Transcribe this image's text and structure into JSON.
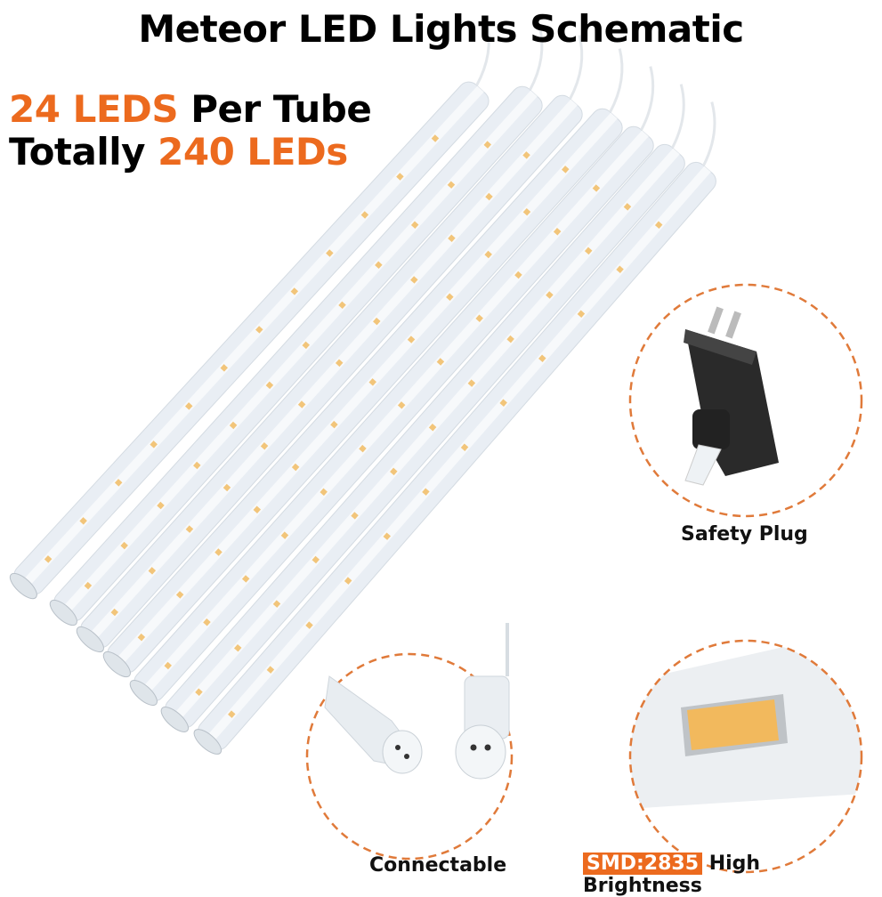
{
  "title": "Meteor LED Lights Schematic",
  "feature_line_1": {
    "highlight": "24 LEDS",
    "text": "Per Tube"
  },
  "feature_line_2": {
    "text": "Totally",
    "highlight": "240 LEDs"
  },
  "callouts": [
    {
      "label": "Safety Plug",
      "icon": "power-adapter-icon"
    },
    {
      "label": "Connectable",
      "icon": "waterproof-connector-icon"
    },
    {
      "badge": "SMD:2835",
      "label": "High Brightness",
      "icon": "smd-led-chip-icon"
    }
  ],
  "colors": {
    "accent": "#ec6a1e",
    "tube": "#e9eef4",
    "led": "#f2c57a"
  }
}
